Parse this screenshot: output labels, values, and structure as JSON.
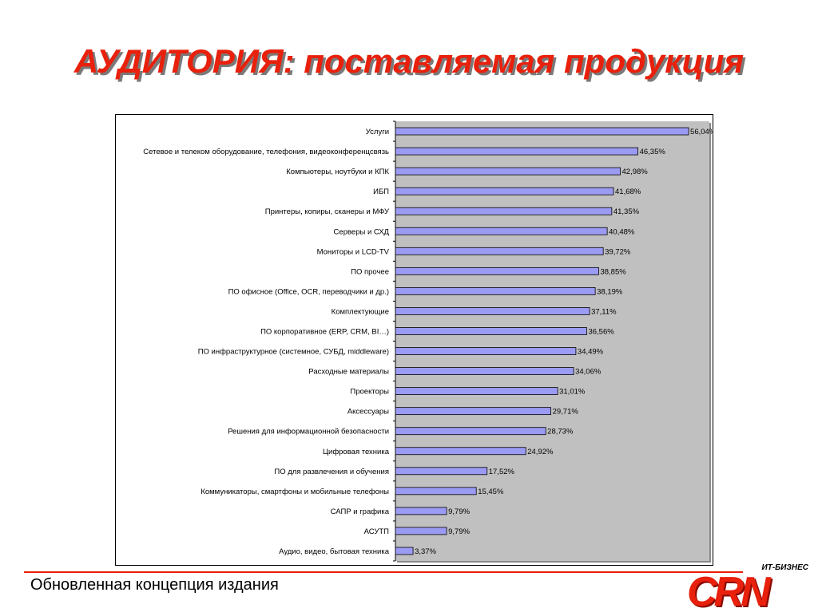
{
  "title": "АУДИТОРИЯ: поставляемая продукция",
  "footer": "Обновленная концепция издания",
  "logo": {
    "subtitle": "ИТ-БИЗНЕС",
    "text": "CRN"
  },
  "colors": {
    "bar": "#9b9bf3",
    "plot_bg": "#c0c0c0",
    "title": "#e8200c"
  },
  "chart_data": {
    "type": "bar",
    "orientation": "horizontal",
    "categories": [
      "Услуги",
      "Сетевое и телеком оборудование, телефония, видеоконференцсвязь",
      "Компьютеры, ноутбуки и КПК",
      "ИБП",
      "Принтеры, копиры, сканеры и МФУ",
      "Серверы и СХД",
      "Мониторы и LCD-TV",
      "ПО прочее",
      "ПО офисное (Office, OCR, переводчики и др.)",
      "Комплектующие",
      "ПО корпоративное (ERP, CRM, BI…)",
      "ПО инфраструктурное (системное, СУБД, middleware)",
      "Расходные материалы",
      "Проекторы",
      "Аксессуары",
      "Решения для информационной безопасности",
      "Цифровая техника",
      "ПО для развлечения и обучения",
      "Коммуникаторы, смартфоны и мобильные телефоны",
      "САПР и графика",
      "АСУТП",
      "Аудио, видео, бытовая техника"
    ],
    "values": [
      56.04,
      46.35,
      42.98,
      41.68,
      41.35,
      40.48,
      39.72,
      38.85,
      38.19,
      37.11,
      36.56,
      34.49,
      34.06,
      31.01,
      29.71,
      28.73,
      24.92,
      17.52,
      15.45,
      9.79,
      9.79,
      3.37
    ],
    "data_labels": [
      "56,04%",
      "46,35%",
      "42,98%",
      "41,68%",
      "41,35%",
      "40,48%",
      "39,72%",
      "38,85%",
      "38,19%",
      "37,11%",
      "36,56%",
      "34,49%",
      "34,06%",
      "31,01%",
      "29,71%",
      "28,73%",
      "24,92%",
      "17,52%",
      "15,45%",
      "9,79%",
      "9,79%",
      "3,37%"
    ],
    "xlim": [
      0,
      60
    ],
    "grid": false,
    "legend": "none"
  }
}
